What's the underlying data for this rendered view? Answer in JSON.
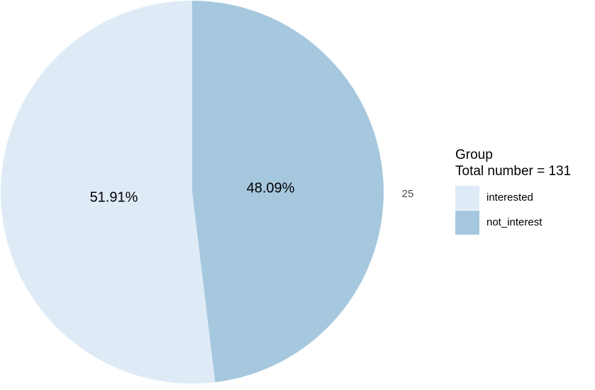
{
  "chart_data": {
    "type": "pie",
    "categories": [
      "interested",
      "not_interest"
    ],
    "values": [
      51.91,
      48.09
    ],
    "labels": [
      "51.91%",
      "48.09%"
    ],
    "colors": [
      "#deebf7",
      "#a6c8df"
    ],
    "axis_tick": "25",
    "legend": {
      "title_line1": "Group",
      "title_line2": "Total number = 131",
      "placement": "right"
    }
  }
}
